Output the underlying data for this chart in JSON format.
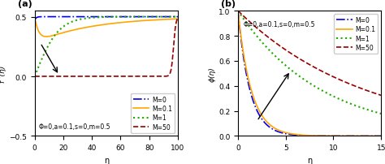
{
  "panel_a": {
    "title": "(a)",
    "xlabel": "η",
    "ylabel": "f '(η)",
    "xlim": [
      0,
      100
    ],
    "ylim": [
      -0.5,
      0.55
    ],
    "xticks": [
      0,
      20,
      40,
      60,
      80,
      100
    ],
    "yticks": [
      -0.5,
      0,
      0.5
    ],
    "annotation": "Φ=0,a=0.1,s=0,m=0.5",
    "series": [
      {
        "label": "M=0",
        "color": "#0000EE",
        "linestyle": "-.",
        "lw": 1.2
      },
      {
        "label": "M=0.1",
        "color": "#FFA500",
        "linestyle": "-",
        "lw": 1.2
      },
      {
        "label": "M=1",
        "color": "#22AA00",
        "linestyle": ":",
        "lw": 1.5
      },
      {
        "label": "M=50",
        "color": "#990000",
        "linestyle": "--",
        "lw": 1.2
      }
    ]
  },
  "panel_b": {
    "title": "(b)",
    "xlabel": "η",
    "ylabel": "ϕ(η)",
    "xlim": [
      0,
      15
    ],
    "ylim": [
      0,
      1
    ],
    "xticks": [
      0,
      5,
      10,
      15
    ],
    "yticks": [
      0.0,
      0.2,
      0.4,
      0.6,
      0.8,
      1.0
    ],
    "annotation": "Φ=0,a=0.1,s=0,m=0.5",
    "series": [
      {
        "label": "M=0",
        "color": "#0000EE",
        "linestyle": "-.",
        "lw": 1.2
      },
      {
        "label": "M=0.1",
        "color": "#FFA500",
        "linestyle": "-",
        "lw": 1.2
      },
      {
        "label": "M=1",
        "color": "#22AA00",
        "linestyle": ":",
        "lw": 1.5
      },
      {
        "label": "M=50",
        "color": "#990000",
        "linestyle": "--",
        "lw": 1.2
      }
    ]
  },
  "figsize": [
    4.74,
    2.03
  ],
  "dpi": 100
}
